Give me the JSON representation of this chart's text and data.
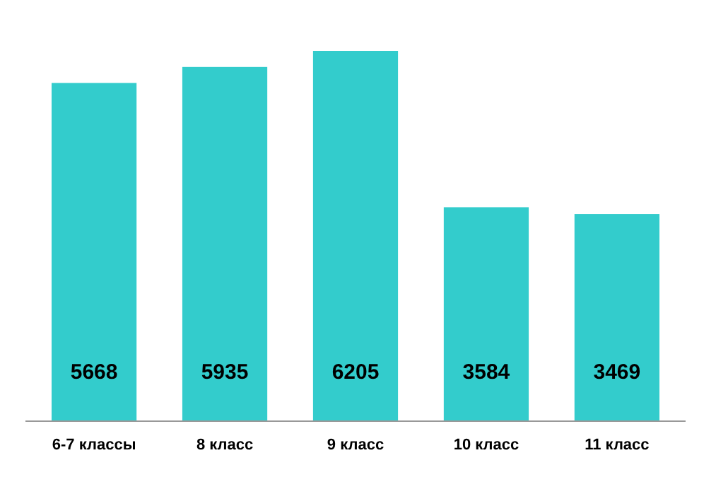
{
  "chart_data": {
    "type": "bar",
    "categories": [
      "6-7 классы",
      "8 класс",
      "9 класс",
      "10 класс",
      "11 класс"
    ],
    "values": [
      5668,
      5935,
      6205,
      3584,
      3469
    ],
    "color": "#33cccc",
    "data_labels": true
  }
}
